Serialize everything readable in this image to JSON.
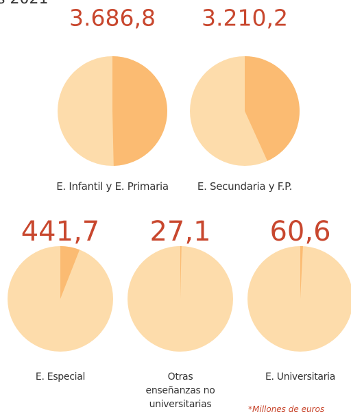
{
  "chart_data": {
    "type": "pie",
    "title": "s 2021",
    "categories": [
      "E. Infantil y E. Primaria",
      "E. Secundaria y F.P.",
      "E. Especial",
      "Otras enseñanzas no universitarias",
      "E. Universitaria"
    ],
    "values": [
      3686.8,
      3210.2,
      441.7,
      27.1,
      60.6
    ],
    "value_labels": [
      "3.686,8",
      "3.210,2",
      "441,7",
      "27,1",
      "60,6"
    ],
    "colors": [
      "#fbbb72",
      "#fddcab"
    ],
    "note": "*Millones de euros"
  }
}
